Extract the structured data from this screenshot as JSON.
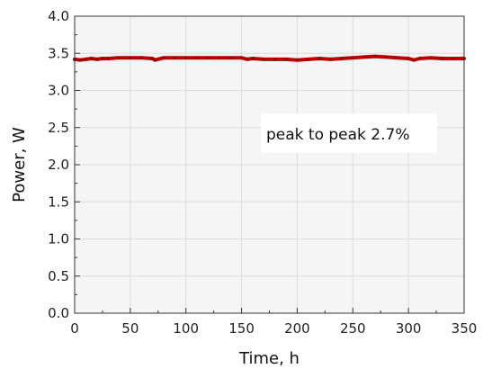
{
  "chart_data": {
    "type": "line",
    "xlabel": "Time, h",
    "ylabel": "Power, W",
    "xlim": [
      0,
      350
    ],
    "ylim": [
      0.0,
      4.0
    ],
    "xticks": [
      "0",
      "50",
      "100",
      "150",
      "200",
      "250",
      "300",
      "350"
    ],
    "yticks": [
      "0.0",
      "0.5",
      "1.0",
      "1.5",
      "2.0",
      "2.5",
      "3.0",
      "3.5",
      "4.0"
    ],
    "grid": true,
    "annotation": "peak to peak 2.7%",
    "line_color": "#c00000",
    "series": [
      {
        "x": [
          0,
          5,
          10,
          15,
          20,
          25,
          30,
          40,
          50,
          60,
          70,
          72,
          80,
          90,
          100,
          110,
          120,
          130,
          140,
          150,
          155,
          160,
          170,
          180,
          190,
          200,
          210,
          220,
          230,
          240,
          250,
          260,
          270,
          280,
          290,
          300,
          305,
          310,
          320,
          330,
          340,
          350
        ],
        "y": [
          3.42,
          3.41,
          3.42,
          3.43,
          3.42,
          3.43,
          3.43,
          3.44,
          3.44,
          3.44,
          3.43,
          3.41,
          3.44,
          3.44,
          3.44,
          3.44,
          3.44,
          3.44,
          3.44,
          3.44,
          3.42,
          3.43,
          3.42,
          3.42,
          3.42,
          3.41,
          3.42,
          3.43,
          3.42,
          3.43,
          3.44,
          3.45,
          3.46,
          3.45,
          3.44,
          3.43,
          3.41,
          3.43,
          3.44,
          3.43,
          3.43,
          3.43
        ]
      }
    ]
  }
}
